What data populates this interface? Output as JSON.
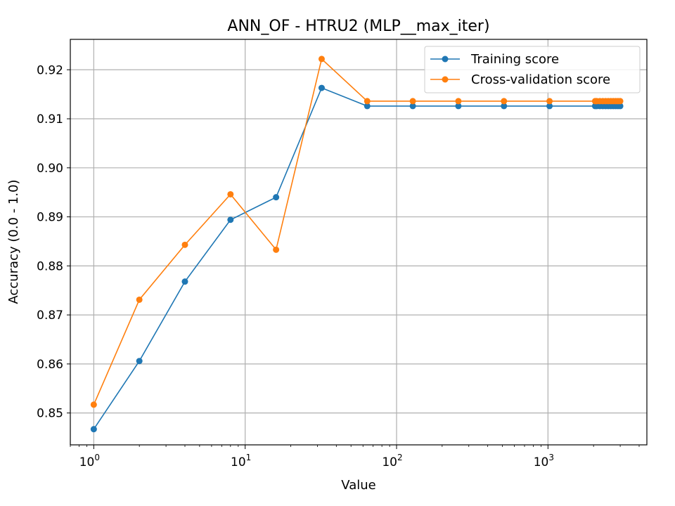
{
  "chart_data": {
    "type": "line",
    "title": "ANN_OF - HTRU2 (MLP__max_iter)",
    "xlabel": "Value",
    "ylabel": "Accuracy (0.0 - 1.0)",
    "xscale": "log",
    "xlim": [
      0.7,
      4500
    ],
    "ylim": [
      0.8435,
      0.9262
    ],
    "x_ticks": [
      {
        "value": 1,
        "base": "10",
        "exp": "0"
      },
      {
        "value": 10,
        "base": "10",
        "exp": "1"
      },
      {
        "value": 100,
        "base": "10",
        "exp": "2"
      },
      {
        "value": 1000,
        "base": "10",
        "exp": "3"
      }
    ],
    "y_ticks": [
      "0.85",
      "0.86",
      "0.87",
      "0.88",
      "0.89",
      "0.90",
      "0.91",
      "0.92"
    ],
    "grid": true,
    "legend_position": "top-right",
    "x": [
      1,
      2,
      4,
      8,
      16,
      32,
      64,
      128,
      256,
      512,
      1024,
      2048,
      2100,
      2200,
      2300,
      2400,
      2500,
      2600,
      2700,
      2800,
      2900,
      3000
    ],
    "series": [
      {
        "name": "Training score",
        "color": "#1f77b4",
        "values": [
          0.8467,
          0.8606,
          0.8768,
          0.8894,
          0.894,
          0.9163,
          0.9126,
          0.9126,
          0.9126,
          0.9126,
          0.9126,
          0.9126,
          0.9126,
          0.9126,
          0.9126,
          0.9126,
          0.9126,
          0.9126,
          0.9126,
          0.9126,
          0.9126,
          0.9126
        ]
      },
      {
        "name": "Cross-validation score",
        "color": "#ff7f0e",
        "values": [
          0.8517,
          0.8731,
          0.8843,
          0.8946,
          0.8833,
          0.9222,
          0.9136,
          0.9136,
          0.9136,
          0.9136,
          0.9136,
          0.9136,
          0.9136,
          0.9136,
          0.9136,
          0.9136,
          0.9136,
          0.9136,
          0.9136,
          0.9136,
          0.9136,
          0.9136
        ]
      }
    ]
  }
}
